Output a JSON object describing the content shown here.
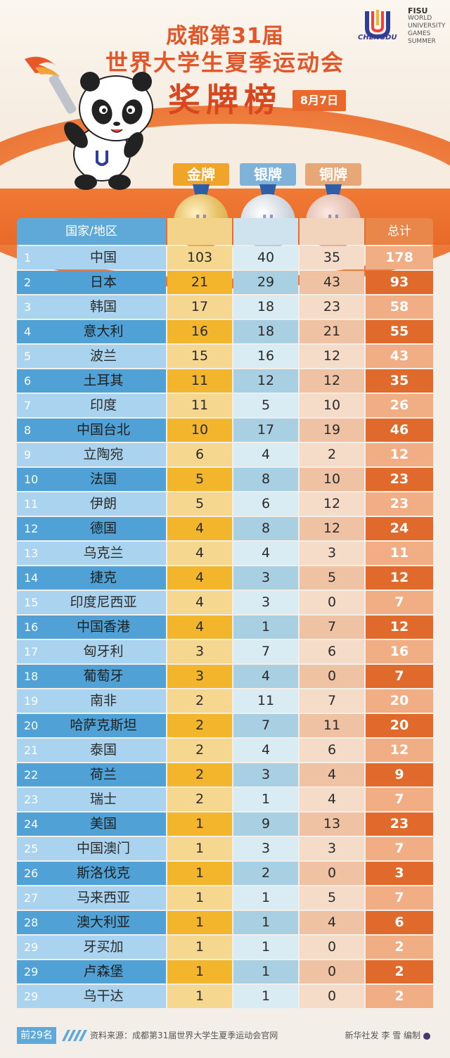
{
  "header": {
    "title_line1": "成都第31届",
    "title_line2": "世界大学生夏季运动会",
    "title_line3": "奖牌榜",
    "date": "8月7日",
    "logo_chengdu": "CHENGDU",
    "fisu_title": "FISU",
    "fisu_lines": [
      "WORLD",
      "UNIVERSITY",
      "GAMES",
      "SUMMER"
    ]
  },
  "medals": {
    "gold_label": "金牌",
    "silver_label": "银牌",
    "bronze_label": "铜牌"
  },
  "table": {
    "col_country": "国家/地区",
    "col_total": "总计",
    "rows": [
      {
        "rank": "1",
        "country": "中国",
        "gold": "103",
        "silver": "40",
        "bronze": "35",
        "total": "178"
      },
      {
        "rank": "2",
        "country": "日本",
        "gold": "21",
        "silver": "29",
        "bronze": "43",
        "total": "93"
      },
      {
        "rank": "3",
        "country": "韩国",
        "gold": "17",
        "silver": "18",
        "bronze": "23",
        "total": "58"
      },
      {
        "rank": "4",
        "country": "意大利",
        "gold": "16",
        "silver": "18",
        "bronze": "21",
        "total": "55"
      },
      {
        "rank": "5",
        "country": "波兰",
        "gold": "15",
        "silver": "16",
        "bronze": "12",
        "total": "43"
      },
      {
        "rank": "6",
        "country": "土耳其",
        "gold": "11",
        "silver": "12",
        "bronze": "12",
        "total": "35"
      },
      {
        "rank": "7",
        "country": "印度",
        "gold": "11",
        "silver": "5",
        "bronze": "10",
        "total": "26"
      },
      {
        "rank": "8",
        "country": "中国台北",
        "gold": "10",
        "silver": "17",
        "bronze": "19",
        "total": "46"
      },
      {
        "rank": "9",
        "country": "立陶宛",
        "gold": "6",
        "silver": "4",
        "bronze": "2",
        "total": "12"
      },
      {
        "rank": "10",
        "country": "法国",
        "gold": "5",
        "silver": "8",
        "bronze": "10",
        "total": "23"
      },
      {
        "rank": "11",
        "country": "伊朗",
        "gold": "5",
        "silver": "6",
        "bronze": "12",
        "total": "23"
      },
      {
        "rank": "12",
        "country": "德国",
        "gold": "4",
        "silver": "8",
        "bronze": "12",
        "total": "24"
      },
      {
        "rank": "13",
        "country": "乌克兰",
        "gold": "4",
        "silver": "4",
        "bronze": "3",
        "total": "11"
      },
      {
        "rank": "14",
        "country": "捷克",
        "gold": "4",
        "silver": "3",
        "bronze": "5",
        "total": "12"
      },
      {
        "rank": "15",
        "country": "印度尼西亚",
        "gold": "4",
        "silver": "3",
        "bronze": "0",
        "total": "7"
      },
      {
        "rank": "16",
        "country": "中国香港",
        "gold": "4",
        "silver": "1",
        "bronze": "7",
        "total": "12"
      },
      {
        "rank": "17",
        "country": "匈牙利",
        "gold": "3",
        "silver": "7",
        "bronze": "6",
        "total": "16"
      },
      {
        "rank": "18",
        "country": "葡萄牙",
        "gold": "3",
        "silver": "4",
        "bronze": "0",
        "total": "7"
      },
      {
        "rank": "19",
        "country": "南非",
        "gold": "2",
        "silver": "11",
        "bronze": "7",
        "total": "20"
      },
      {
        "rank": "20",
        "country": "哈萨克斯坦",
        "gold": "2",
        "silver": "7",
        "bronze": "11",
        "total": "20"
      },
      {
        "rank": "21",
        "country": "泰国",
        "gold": "2",
        "silver": "4",
        "bronze": "6",
        "total": "12"
      },
      {
        "rank": "22",
        "country": "荷兰",
        "gold": "2",
        "silver": "3",
        "bronze": "4",
        "total": "9"
      },
      {
        "rank": "23",
        "country": "瑞士",
        "gold": "2",
        "silver": "1",
        "bronze": "4",
        "total": "7"
      },
      {
        "rank": "24",
        "country": "美国",
        "gold": "1",
        "silver": "9",
        "bronze": "13",
        "total": "23"
      },
      {
        "rank": "25",
        "country": "中国澳门",
        "gold": "1",
        "silver": "3",
        "bronze": "3",
        "total": "7"
      },
      {
        "rank": "26",
        "country": "斯洛伐克",
        "gold": "1",
        "silver": "2",
        "bronze": "0",
        "total": "3"
      },
      {
        "rank": "27",
        "country": "马来西亚",
        "gold": "1",
        "silver": "1",
        "bronze": "5",
        "total": "7"
      },
      {
        "rank": "28",
        "country": "澳大利亚",
        "gold": "1",
        "silver": "1",
        "bronze": "4",
        "total": "6"
      },
      {
        "rank": "29",
        "country": "牙买加",
        "gold": "1",
        "silver": "1",
        "bronze": "0",
        "total": "2"
      },
      {
        "rank": "29",
        "country": "卢森堡",
        "gold": "1",
        "silver": "1",
        "bronze": "0",
        "total": "2"
      },
      {
        "rank": "29",
        "country": "乌干达",
        "gold": "1",
        "silver": "1",
        "bronze": "0",
        "total": "2"
      }
    ]
  },
  "footer": {
    "tag": "前29名",
    "source": "资料来源：成都第31届世界大学生夏季运动会官网",
    "credit": "新华社发 李 雪 编制"
  },
  "colors": {
    "title": "#e2572a",
    "orange": "#e96a28",
    "blue": "#4fa1d6",
    "gold": "#f2b52b",
    "silver": "#a9cfe3",
    "bronze": "#eec2a2"
  }
}
